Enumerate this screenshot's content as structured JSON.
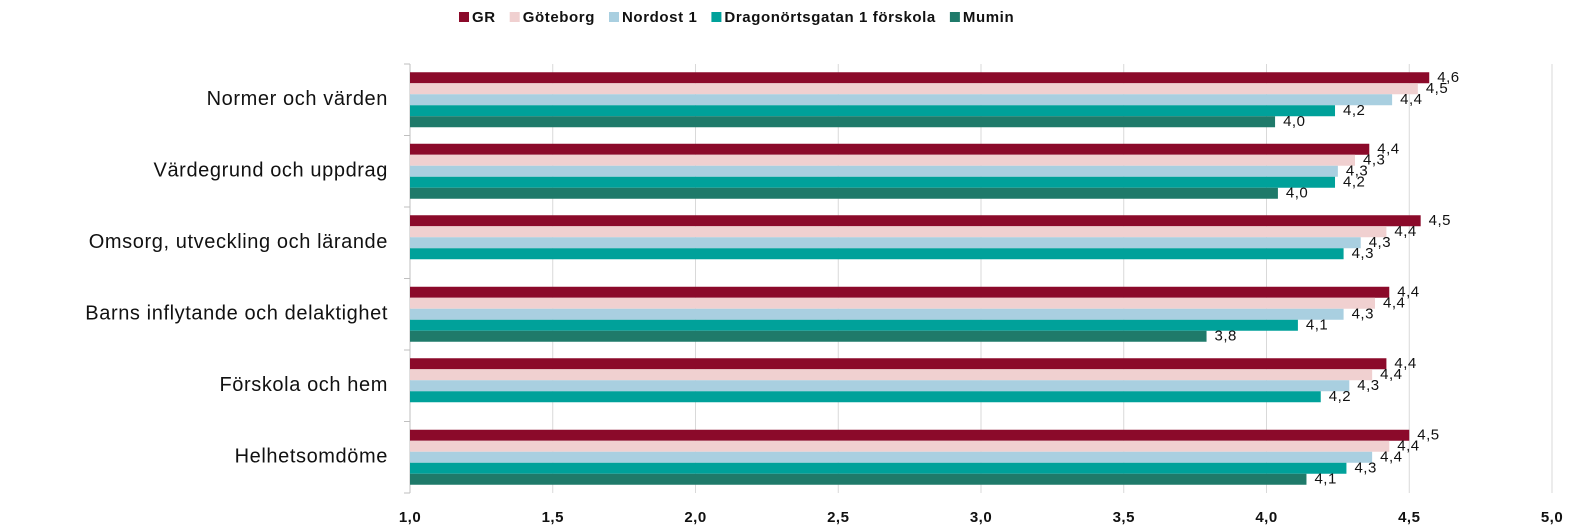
{
  "chart_data": {
    "type": "hbar",
    "categories": [
      "Normer och värden",
      "Värdegrund och uppdrag",
      "Omsorg, utveckling och lärande",
      "Barns inflytande och delaktighet",
      "Förskola och hem",
      "Helhetsomdöme"
    ],
    "series": [
      {
        "name": "GR",
        "color": "#8b0a2a",
        "values": [
          4.57,
          4.36,
          4.54,
          4.43,
          4.42,
          4.5
        ],
        "value_labels": [
          "4,6",
          "4,4",
          "4,5",
          "4,4",
          "4,4",
          "4,5"
        ]
      },
      {
        "name": "Göteborg",
        "color": "#f0d0d0",
        "values": [
          4.53,
          4.31,
          4.42,
          4.38,
          4.37,
          4.43
        ],
        "value_labels": [
          "4,5",
          "4,3",
          "4,4",
          "4,4",
          "4,4",
          "4,4"
        ]
      },
      {
        "name": "Nordost 1",
        "color": "#a9cfe0",
        "values": [
          4.44,
          4.25,
          4.33,
          4.27,
          4.29,
          4.37
        ],
        "value_labels": [
          "4,4",
          "4,3",
          "4,3",
          "4,3",
          "4,3",
          "4,4"
        ]
      },
      {
        "name": "Dragonörtsgatan 1 förskola",
        "color": "#00a19a",
        "values": [
          4.24,
          4.24,
          4.27,
          4.11,
          4.19,
          4.28
        ],
        "value_labels": [
          "4,2",
          "4,2",
          "4,3",
          "4,1",
          "4,2",
          "4,3"
        ]
      },
      {
        "name": "Mumin",
        "color": "#1f7a6a",
        "values": [
          4.03,
          4.04,
          null,
          3.79,
          null,
          4.14
        ],
        "value_labels": [
          "4,0",
          "4,0",
          null,
          "3,8",
          null,
          "4,1"
        ]
      }
    ],
    "xlim": [
      1,
      5
    ],
    "xticks": [
      {
        "value": 1,
        "label": "1,0"
      },
      {
        "value": 1.5,
        "label": "1,5"
      },
      {
        "value": 2,
        "label": "2,0"
      },
      {
        "value": 2.5,
        "label": "2,5"
      },
      {
        "value": 3,
        "label": "3,0"
      },
      {
        "value": 3.5,
        "label": "3,5"
      },
      {
        "value": 4,
        "label": "4,0"
      },
      {
        "value": 4.5,
        "label": "4,5"
      },
      {
        "value": 5,
        "label": "5,0"
      }
    ],
    "grid": true,
    "legend": "top"
  }
}
